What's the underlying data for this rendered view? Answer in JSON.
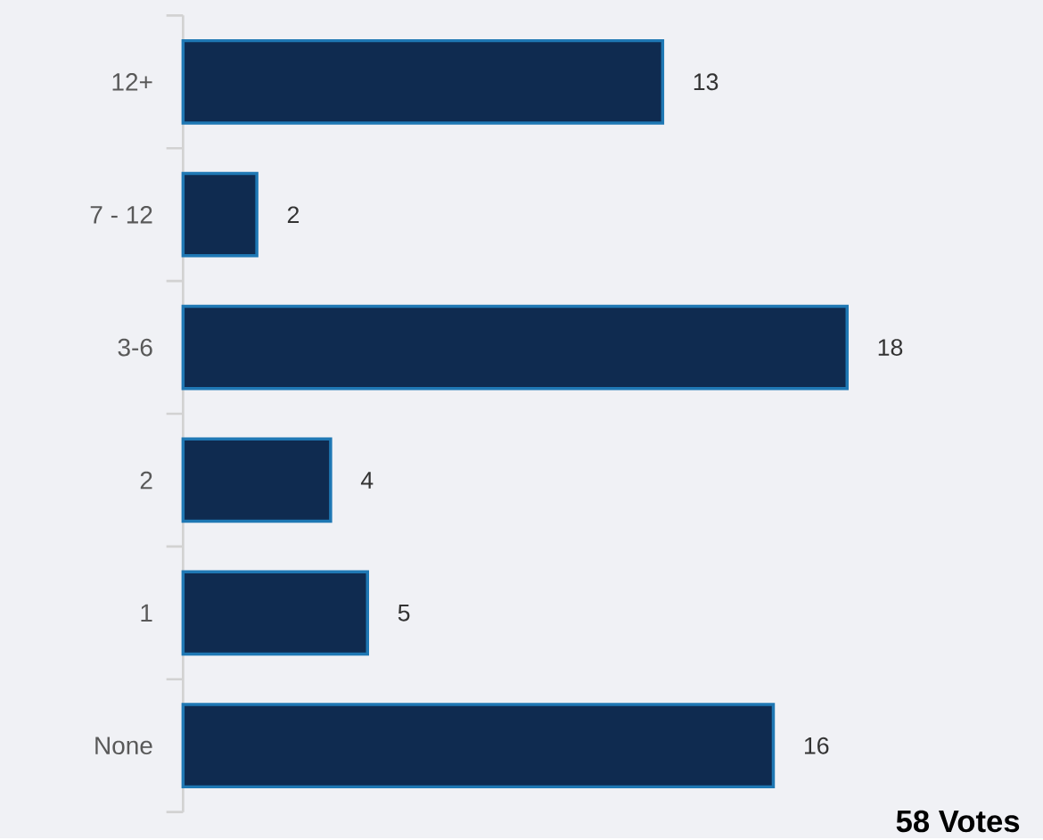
{
  "chart_data": {
    "type": "bar",
    "orientation": "horizontal",
    "categories": [
      "12+",
      "7 - 12",
      "3-6",
      "2",
      "1",
      "None"
    ],
    "values": [
      13,
      2,
      18,
      4,
      5,
      16
    ],
    "color": "#0f2b50",
    "data_labels": true,
    "annotations": [
      "58 Votes"
    ]
  }
}
